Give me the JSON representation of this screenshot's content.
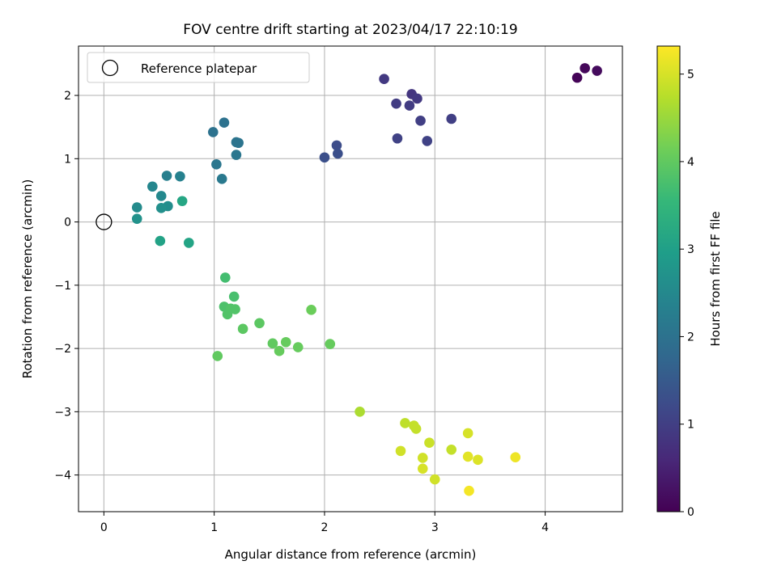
{
  "chart_data": {
    "type": "scatter",
    "title": "FOV centre drift starting at 2023/04/17 22:10:19",
    "xlabel": "Angular distance from reference (arcmin)",
    "ylabel": "Rotation from reference (arcmin)",
    "xlim": [
      -0.23,
      4.7
    ],
    "ylim": [
      -4.58,
      2.78
    ],
    "xticks": [
      0,
      1,
      2,
      3,
      4
    ],
    "xtick_labels": [
      "0",
      "1",
      "2",
      "3",
      "4"
    ],
    "yticks": [
      -4,
      -3,
      -2,
      -1,
      0,
      1,
      2
    ],
    "ytick_labels": [
      "−4",
      "−3",
      "−2",
      "−1",
      "0",
      "1",
      "2"
    ],
    "grid": true,
    "legend": {
      "position": "top-left",
      "entries": [
        {
          "label": "Reference platepar",
          "marker": "open-circle"
        }
      ]
    },
    "reference_point": {
      "x": 0,
      "y": 0
    },
    "colorbar": {
      "label": "Hours from first FF file",
      "colormap": "viridis",
      "range": [
        0,
        5.32
      ],
      "ticks": [
        0,
        1,
        2,
        3,
        4,
        5
      ],
      "tick_labels": [
        "0",
        "1",
        "2",
        "3",
        "4",
        "5"
      ],
      "colormap_stops": [
        "#440154",
        "#482878",
        "#3e4989",
        "#31688e",
        "#26828e",
        "#1f9e89",
        "#35b779",
        "#6ece58",
        "#b5de2b",
        "#fde725"
      ]
    },
    "points": [
      {
        "x": 4.29,
        "y": 2.28,
        "c": 0.05
      },
      {
        "x": 4.36,
        "y": 2.43,
        "c": 0.1
      },
      {
        "x": 4.47,
        "y": 2.39,
        "c": 0.15
      },
      {
        "x": 2.54,
        "y": 2.26,
        "c": 0.9
      },
      {
        "x": 2.79,
        "y": 2.02,
        "c": 0.85
      },
      {
        "x": 2.84,
        "y": 1.95,
        "c": 0.9
      },
      {
        "x": 2.65,
        "y": 1.87,
        "c": 0.95
      },
      {
        "x": 2.77,
        "y": 1.84,
        "c": 0.95
      },
      {
        "x": 3.15,
        "y": 1.63,
        "c": 1.0
      },
      {
        "x": 2.87,
        "y": 1.6,
        "c": 1.0
      },
      {
        "x": 2.66,
        "y": 1.32,
        "c": 1.05
      },
      {
        "x": 2.93,
        "y": 1.28,
        "c": 1.05
      },
      {
        "x": 2.11,
        "y": 1.21,
        "c": 1.25
      },
      {
        "x": 2.12,
        "y": 1.08,
        "c": 1.3
      },
      {
        "x": 2.0,
        "y": 1.02,
        "c": 1.3
      },
      {
        "x": 1.09,
        "y": 1.57,
        "c": 2.0
      },
      {
        "x": 0.99,
        "y": 1.42,
        "c": 2.0
      },
      {
        "x": 1.2,
        "y": 1.26,
        "c": 2.05
      },
      {
        "x": 1.22,
        "y": 1.25,
        "c": 2.05
      },
      {
        "x": 1.2,
        "y": 1.06,
        "c": 2.1
      },
      {
        "x": 1.02,
        "y": 0.91,
        "c": 2.1
      },
      {
        "x": 1.07,
        "y": 0.68,
        "c": 2.15
      },
      {
        "x": 0.57,
        "y": 0.73,
        "c": 2.3
      },
      {
        "x": 0.69,
        "y": 0.72,
        "c": 2.35
      },
      {
        "x": 0.44,
        "y": 0.56,
        "c": 2.45
      },
      {
        "x": 0.52,
        "y": 0.41,
        "c": 2.5
      },
      {
        "x": 0.3,
        "y": 0.23,
        "c": 2.55
      },
      {
        "x": 0.58,
        "y": 0.25,
        "c": 2.6
      },
      {
        "x": 0.52,
        "y": 0.22,
        "c": 2.65
      },
      {
        "x": 0.3,
        "y": 0.05,
        "c": 2.7
      },
      {
        "x": 0.71,
        "y": 0.33,
        "c": 3.15
      },
      {
        "x": 0.51,
        "y": -0.3,
        "c": 3.05
      },
      {
        "x": 0.77,
        "y": -0.33,
        "c": 3.1
      },
      {
        "x": 1.1,
        "y": -0.88,
        "c": 3.7
      },
      {
        "x": 1.18,
        "y": -1.18,
        "c": 3.75
      },
      {
        "x": 1.09,
        "y": -1.34,
        "c": 3.8
      },
      {
        "x": 1.15,
        "y": -1.37,
        "c": 3.85
      },
      {
        "x": 1.19,
        "y": -1.38,
        "c": 3.85
      },
      {
        "x": 1.12,
        "y": -1.46,
        "c": 3.85
      },
      {
        "x": 1.26,
        "y": -1.69,
        "c": 3.95
      },
      {
        "x": 1.41,
        "y": -1.6,
        "c": 3.95
      },
      {
        "x": 1.88,
        "y": -1.39,
        "c": 4.1
      },
      {
        "x": 1.53,
        "y": -1.92,
        "c": 4.0
      },
      {
        "x": 1.65,
        "y": -1.9,
        "c": 4.05
      },
      {
        "x": 1.59,
        "y": -2.04,
        "c": 4.05
      },
      {
        "x": 1.76,
        "y": -1.98,
        "c": 4.05
      },
      {
        "x": 2.05,
        "y": -1.93,
        "c": 4.05
      },
      {
        "x": 1.03,
        "y": -2.12,
        "c": 4.0
      },
      {
        "x": 2.32,
        "y": -3.0,
        "c": 4.65
      },
      {
        "x": 2.73,
        "y": -3.18,
        "c": 4.8
      },
      {
        "x": 2.81,
        "y": -3.22,
        "c": 4.85
      },
      {
        "x": 2.83,
        "y": -3.27,
        "c": 4.85
      },
      {
        "x": 2.95,
        "y": -3.49,
        "c": 4.9
      },
      {
        "x": 3.15,
        "y": -3.6,
        "c": 4.85
      },
      {
        "x": 2.69,
        "y": -3.62,
        "c": 4.95
      },
      {
        "x": 3.3,
        "y": -3.34,
        "c": 5.0
      },
      {
        "x": 3.3,
        "y": -3.71,
        "c": 5.1
      },
      {
        "x": 2.89,
        "y": -3.73,
        "c": 4.95
      },
      {
        "x": 3.39,
        "y": -3.76,
        "c": 5.05
      },
      {
        "x": 3.73,
        "y": -3.72,
        "c": 5.2
      },
      {
        "x": 2.89,
        "y": -3.9,
        "c": 5.0
      },
      {
        "x": 3.0,
        "y": -4.07,
        "c": 4.95
      },
      {
        "x": 3.31,
        "y": -4.25,
        "c": 5.25
      }
    ]
  }
}
